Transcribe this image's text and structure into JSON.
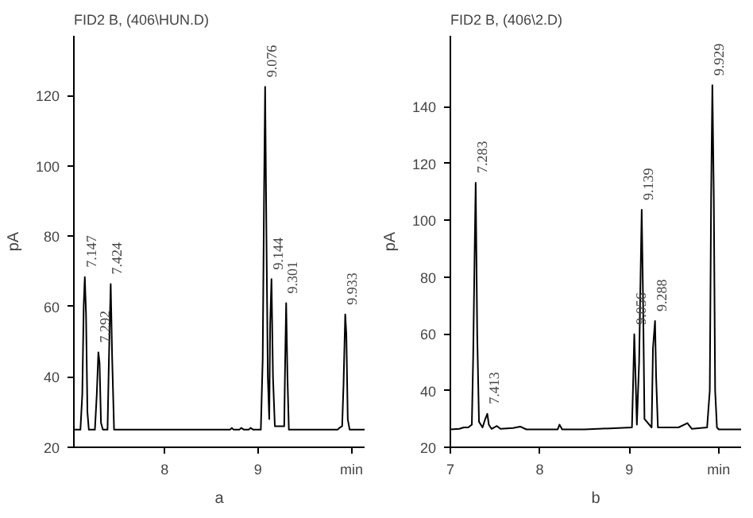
{
  "chart_data": [
    {
      "type": "line",
      "title": "FID2 B, (406\\HUN.D)",
      "xlabel": "a",
      "ylabel": "pA",
      "grid": false,
      "line_style": "solid",
      "xlim": [
        7.03,
        10.14
      ],
      "xticks": [
        8,
        9,
        {
          "value": 10,
          "label": "min"
        }
      ],
      "ylim": [
        20,
        137
      ],
      "yticks": [
        20,
        40,
        60,
        80,
        100,
        120
      ],
      "series": [
        {
          "color": "#000000",
          "x": [
            7.03,
            7.1,
            7.12,
            7.135,
            7.147,
            7.16,
            7.175,
            7.19,
            7.255,
            7.275,
            7.292,
            7.305,
            7.32,
            7.34,
            7.39,
            7.405,
            7.424,
            7.44,
            7.46,
            8.7,
            8.72,
            8.74,
            8.8,
            8.82,
            8.85,
            8.9,
            8.92,
            8.95,
            9.03,
            9.05,
            9.065,
            9.076,
            9.09,
            9.105,
            9.12,
            9.13,
            9.144,
            9.16,
            9.18,
            9.28,
            9.29,
            9.301,
            9.315,
            9.33,
            9.85,
            9.87,
            9.9,
            9.915,
            9.933,
            9.945,
            9.96,
            9.98,
            10.14
          ],
          "values": [
            25,
            25,
            35,
            60,
            68.4,
            58,
            30,
            25,
            25,
            35,
            47,
            44,
            27,
            25,
            25,
            45,
            66.4,
            45,
            25,
            25,
            25.5,
            25,
            25,
            25.5,
            25,
            25,
            25.5,
            25,
            25,
            45,
            93,
            122.5,
            80,
            40,
            28,
            55,
            67.8,
            40,
            26,
            26,
            44,
            61,
            40,
            25,
            25,
            25.5,
            26,
            38,
            57.8,
            52,
            28,
            25,
            25
          ]
        }
      ],
      "annotations": [
        {
          "text": "7.147",
          "x": 7.147,
          "y": 68.4
        },
        {
          "text": "7.292",
          "x": 7.292,
          "y": 47
        },
        {
          "text": "7.424",
          "x": 7.424,
          "y": 66.4
        },
        {
          "text": "9.076",
          "x": 9.076,
          "y": 122.5
        },
        {
          "text": "9.144",
          "x": 9.144,
          "y": 67.8
        },
        {
          "text": "9.301",
          "x": 9.301,
          "y": 61
        },
        {
          "text": "9.933",
          "x": 9.933,
          "y": 57.8
        }
      ]
    },
    {
      "type": "line",
      "title": "FID2 B, (406\\2.D)",
      "xlabel": "b",
      "ylabel": "pA",
      "grid": false,
      "line_style": "solid",
      "xlim": [
        7,
        10.25
      ],
      "xticks": [
        7,
        8,
        9,
        {
          "value": 10,
          "label": "min"
        }
      ],
      "ylim": [
        20,
        165
      ],
      "yticks": [
        20,
        40,
        60,
        80,
        100,
        120,
        140
      ],
      "series": [
        {
          "color": "#000000",
          "x": [
            7.0,
            7.1,
            7.15,
            7.2,
            7.24,
            7.255,
            7.27,
            7.283,
            7.3,
            7.32,
            7.36,
            7.39,
            7.413,
            7.43,
            7.46,
            7.52,
            7.56,
            7.7,
            7.78,
            7.85,
            8.2,
            8.22,
            8.25,
            8.5,
            9.03,
            9.045,
            9.056,
            9.07,
            9.085,
            9.11,
            9.125,
            9.139,
            9.155,
            9.17,
            9.25,
            9.265,
            9.288,
            9.3,
            9.32,
            9.55,
            9.65,
            9.7,
            9.87,
            9.9,
            9.915,
            9.929,
            9.945,
            9.96,
            9.98,
            10.0,
            10.25
          ],
          "values": [
            26.3,
            26.5,
            27,
            27,
            28,
            52,
            86,
            113.2,
            60,
            29,
            27,
            30,
            31.8,
            28,
            26.5,
            27.5,
            26.5,
            26.8,
            27.3,
            26.3,
            26.3,
            28,
            26.3,
            26.3,
            27,
            45,
            59.8,
            45,
            28,
            50,
            78,
            103.7,
            70,
            30,
            27,
            55,
            64.5,
            45,
            27,
            27,
            28.5,
            26.5,
            27,
            40,
            108,
            147.6,
            108,
            40,
            27,
            26.3,
            26.3
          ]
        }
      ],
      "annotations": [
        {
          "text": "7.283",
          "x": 7.283,
          "y": 113.2
        },
        {
          "text": "7.413",
          "x": 7.413,
          "y": 31.8
        },
        {
          "text": "9.056",
          "x": 9.056,
          "y": 59.8
        },
        {
          "text": "9.139",
          "x": 9.139,
          "y": 103.7
        },
        {
          "text": "9.288",
          "x": 9.288,
          "y": 64.5
        },
        {
          "text": "9.929",
          "x": 9.929,
          "y": 147.6
        }
      ]
    }
  ]
}
